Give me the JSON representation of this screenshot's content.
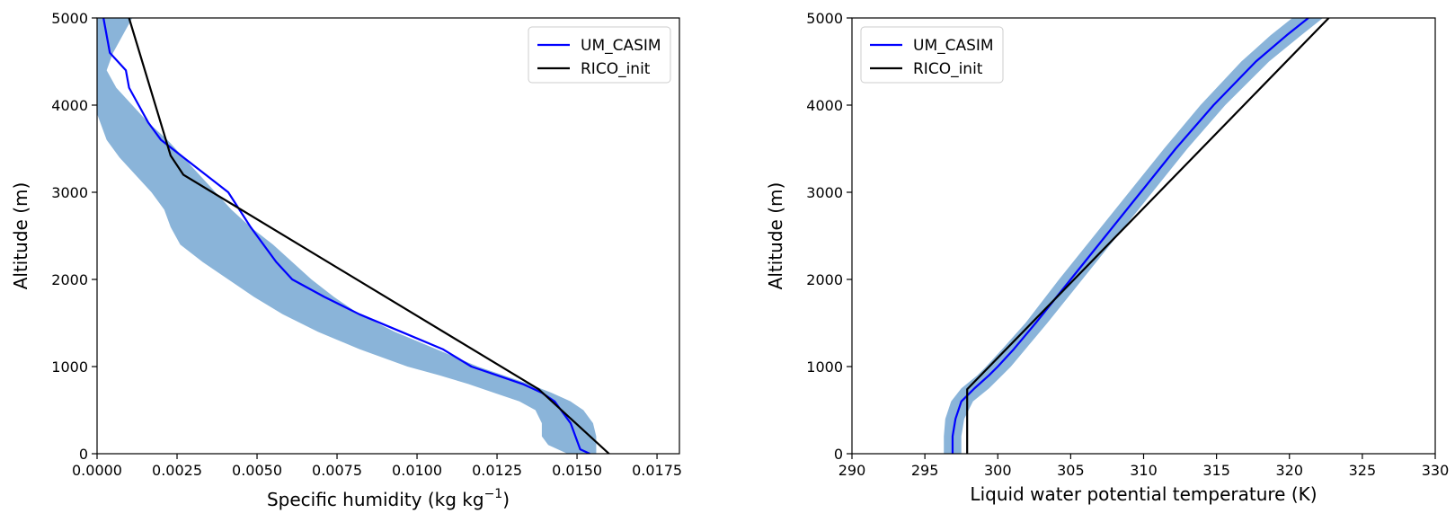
{
  "chart_data": [
    {
      "type": "line",
      "xlabel": "Specific humidity",
      "xlabel_units": "(kg kg",
      "xlabel_exp": "−1",
      "xlabel_close": ")",
      "ylabel": "Altitude (m)",
      "xlim": [
        0,
        0.0182
      ],
      "ylim": [
        0,
        5000
      ],
      "xticks": [
        0,
        0.0025,
        0.005,
        0.0075,
        0.01,
        0.0125,
        0.015,
        0.0175
      ],
      "xtick_labels": [
        "0.0000",
        "0.0025",
        "0.0050",
        "0.0075",
        "0.0100",
        "0.0125",
        "0.0150",
        "0.0175"
      ],
      "yticks": [
        0,
        1000,
        2000,
        3000,
        4000,
        5000
      ],
      "ytick_labels": [
        "0",
        "1000",
        "2000",
        "3000",
        "4000",
        "5000"
      ],
      "grid": false,
      "legend_position": "top-right",
      "colors": {
        "UM_CASIM": "#0000ff",
        "RICO_init": "#000000",
        "band": "#8ab4d9"
      },
      "band": {
        "y": [
          0,
          100,
          200,
          350,
          500,
          600,
          700,
          800,
          900,
          1000,
          1200,
          1400,
          1600,
          1800,
          2000,
          2200,
          2400,
          2600,
          2800,
          3000,
          3200,
          3400,
          3600,
          3800,
          4000,
          4200,
          4400,
          4600,
          4800,
          5000
        ],
        "lower": [
          0.0147,
          0.0141,
          0.0139,
          0.0139,
          0.0137,
          0.0132,
          0.0124,
          0.0116,
          0.0107,
          0.0097,
          0.0082,
          0.0069,
          0.0058,
          0.0049,
          0.0041,
          0.0033,
          0.0026,
          0.0023,
          0.0021,
          0.0017,
          0.0012,
          0.0007,
          0.0003,
          0.0001,
          -0.0001,
          -0.0002,
          -0.0003,
          -0.0003,
          -0.0002,
          -0.0001
        ],
        "upper": [
          0.0156,
          0.0156,
          0.0156,
          0.0155,
          0.0152,
          0.0148,
          0.0142,
          0.0135,
          0.0127,
          0.0119,
          0.0106,
          0.0093,
          0.0082,
          0.0074,
          0.0067,
          0.0061,
          0.0055,
          0.0048,
          0.0042,
          0.0037,
          0.0032,
          0.0027,
          0.0022,
          0.0016,
          0.0011,
          0.0006,
          0.0003,
          0.0005,
          0.0008,
          0.0011
        ]
      },
      "series": [
        {
          "name": "UM_CASIM",
          "x": [
            0.0154,
            0.0151,
            0.015,
            0.0148,
            0.0145,
            0.0143,
            0.0139,
            0.0133,
            0.0125,
            0.0117,
            0.0108,
            0.0095,
            0.0082,
            0.0071,
            0.0061,
            0.0056,
            0.0048,
            0.0041,
            0.0034,
            0.0027,
            0.002,
            0.0016,
            0.0013,
            0.001,
            0.0009,
            0.0004,
            0.0003,
            0.0002
          ],
          "y": [
            0,
            50,
            150,
            350,
            500,
            600,
            700,
            800,
            900,
            1000,
            1200,
            1400,
            1600,
            1800,
            2000,
            2200,
            2600,
            3000,
            3200,
            3400,
            3600,
            3800,
            4000,
            4200,
            4400,
            4600,
            4800,
            5000
          ]
        },
        {
          "name": "RICO_init",
          "x": [
            0.016,
            0.0138,
            0.0027,
            0.0023,
            0.001
          ],
          "y": [
            0,
            740,
            3200,
            3420,
            5000
          ]
        }
      ]
    },
    {
      "type": "line",
      "xlabel": "Liquid water potential temperature (K)",
      "ylabel": "Altitude (m)",
      "xlim": [
        290,
        330
      ],
      "ylim": [
        0,
        5000
      ],
      "xticks": [
        290,
        295,
        300,
        305,
        310,
        315,
        320,
        325,
        330
      ],
      "xtick_labels": [
        "290",
        "295",
        "300",
        "305",
        "310",
        "315",
        "320",
        "325",
        "330"
      ],
      "yticks": [
        0,
        1000,
        2000,
        3000,
        4000,
        5000
      ],
      "ytick_labels": [
        "0",
        "1000",
        "2000",
        "3000",
        "4000",
        "5000"
      ],
      "grid": false,
      "legend_position": "top-left",
      "colors": {
        "UM_CASIM": "#0000ff",
        "RICO_init": "#000000",
        "band": "#8ab4d9"
      },
      "band": {
        "y": [
          0,
          200,
          400,
          600,
          750,
          900,
          1000,
          1200,
          1500,
          2000,
          2500,
          3000,
          3500,
          4000,
          4500,
          4800,
          5000
        ],
        "lower": [
          296.3,
          296.3,
          296.4,
          296.8,
          297.5,
          298.6,
          299.2,
          300.3,
          301.9,
          304.2,
          306.6,
          309.0,
          311.4,
          313.9,
          316.7,
          318.7,
          320.2
        ],
        "upper": [
          297.5,
          297.5,
          297.7,
          298.3,
          299.4,
          300.3,
          300.9,
          301.9,
          303.4,
          305.8,
          308.2,
          310.6,
          313.0,
          315.6,
          318.6,
          320.8,
          322.3
        ]
      },
      "series": [
        {
          "name": "UM_CASIM",
          "x": [
            296.9,
            296.9,
            297.1,
            297.5,
            298.4,
            299.4,
            300.0,
            301.1,
            302.6,
            305.0,
            307.4,
            309.8,
            312.2,
            314.8,
            317.7,
            319.8,
            321.3
          ],
          "y": [
            0,
            200,
            400,
            600,
            750,
            900,
            1000,
            1200,
            1500,
            2000,
            2500,
            3000,
            3500,
            4000,
            4500,
            4800,
            5000
          ]
        },
        {
          "name": "RICO_init",
          "x": [
            297.9,
            297.9,
            322.7
          ],
          "y": [
            0,
            740,
            5000
          ]
        }
      ]
    }
  ]
}
